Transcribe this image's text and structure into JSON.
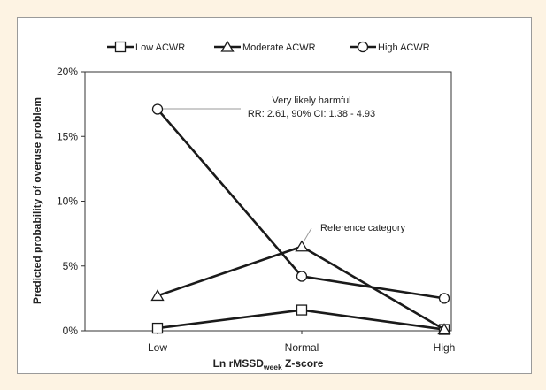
{
  "chart_data": {
    "type": "line",
    "categories": [
      "Low",
      "Normal",
      "High"
    ],
    "series": [
      {
        "name": "Low ACWR",
        "marker": "square",
        "values": [
          0.2,
          1.6,
          0.1
        ]
      },
      {
        "name": "Moderate ACWR",
        "marker": "triangle",
        "values": [
          2.7,
          6.5,
          0.1
        ]
      },
      {
        "name": "High ACWR",
        "marker": "circle",
        "values": [
          17.1,
          4.2,
          2.5
        ]
      }
    ],
    "ylabel": "Predicted probability of overuse problem",
    "xlabel_main": "Ln rMSSD",
    "xlabel_sub": "week",
    "xlabel_tail": " Z-score",
    "ylim": [
      0,
      20
    ],
    "yticks": [
      0,
      5,
      10,
      15,
      20
    ],
    "ytick_suffix": "%",
    "legend_position": "top",
    "grid": false,
    "annotations": [
      {
        "lines": [
          "Very likely harmful",
          "RR: 2.61, 90% CI: 1.38 - 4.93"
        ],
        "series": 2,
        "index": 0
      },
      {
        "lines": [
          "Reference category"
        ],
        "series": 1,
        "index": 1
      }
    ],
    "colors": {
      "line": "#1a1a1a",
      "marker_fill": "#ffffff",
      "axis": "#333333",
      "leader": "#9a9a9a"
    }
  }
}
